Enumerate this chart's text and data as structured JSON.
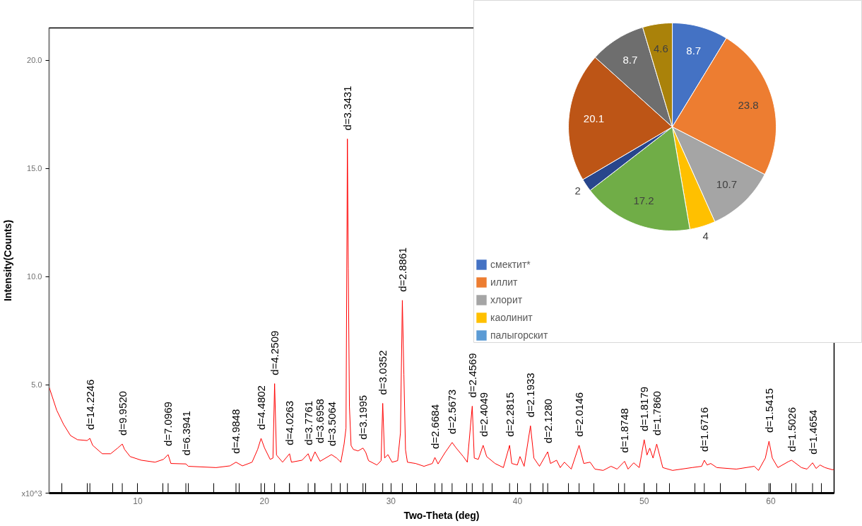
{
  "chart_data": [
    {
      "type": "line",
      "xlabel": "Two-Theta (deg)",
      "ylabel": "Intensity(Counts)",
      "color": "#ff0000",
      "xlim": [
        3,
        65
      ],
      "ylim": [
        0,
        21.5
      ],
      "xticks": [
        {
          "value": 4,
          "label": null
        },
        {
          "value": 6,
          "label": null
        },
        {
          "value": 8,
          "label": null
        },
        10,
        {
          "value": 12,
          "label": null
        },
        {
          "value": 14,
          "label": null
        },
        {
          "value": 16,
          "label": null
        },
        {
          "value": 18,
          "label": null
        },
        20,
        {
          "value": 22,
          "label": null
        },
        {
          "value": 24,
          "label": null
        },
        {
          "value": 26,
          "label": null
        },
        {
          "value": 28,
          "label": null
        },
        30,
        {
          "value": 32,
          "label": null
        },
        {
          "value": 34,
          "label": null
        },
        {
          "value": 36,
          "label": null
        },
        {
          "value": 38,
          "label": null
        },
        40,
        {
          "value": 42,
          "label": null
        },
        {
          "value": 44,
          "label": null
        },
        {
          "value": 46,
          "label": null
        },
        {
          "value": 48,
          "label": null
        },
        50,
        {
          "value": 52,
          "label": null
        },
        {
          "value": 54,
          "label": null
        },
        {
          "value": 56,
          "label": null
        },
        {
          "value": 58,
          "label": null
        },
        60,
        {
          "value": 62,
          "label": null
        },
        {
          "value": 64,
          "label": null
        }
      ],
      "yticks": [
        {
          "value": 0,
          "label": "x10^3"
        },
        {
          "value": 5,
          "label": "5.0"
        },
        {
          "value": 10,
          "label": "10.0"
        },
        {
          "value": 15,
          "label": "15.0"
        },
        {
          "value": 20,
          "label": "20.0"
        }
      ],
      "x": [
        3.0,
        3.6,
        4.14,
        4.69,
        5.24,
        6.0,
        6.22,
        6.44,
        7.2,
        7.86,
        8.41,
        8.78,
        8.96,
        9.4,
        10.28,
        11.37,
        12.03,
        12.4,
        12.62,
        13.8,
        14.0,
        16.19,
        17.28,
        17.76,
        18.27,
        19.03,
        19.47,
        19.74,
        20.02,
        20.46,
        20.68,
        20.81,
        20.96,
        21.44,
        21.99,
        22.14,
        22.98,
        23.46,
        23.68,
        24.0,
        24.4,
        25.3,
        25.71,
        26.04,
        26.3,
        26.45,
        26.56,
        26.63,
        26.72,
        26.85,
        27.03,
        27.4,
        27.79,
        28.01,
        28.23,
        28.89,
        29.22,
        29.35,
        29.5,
        29.76,
        30.09,
        30.53,
        30.75,
        30.9,
        31.02,
        31.15,
        31.3,
        31.95,
        32.61,
        33.27,
        33.47,
        33.72,
        34.28,
        34.83,
        35.16,
        35.71,
        36.03,
        36.42,
        36.58,
        36.9,
        37.28,
        37.56,
        38.22,
        38.88,
        39.37,
        39.54,
        39.98,
        40.19,
        40.52,
        41.02,
        41.29,
        41.73,
        42.38,
        42.6,
        43.08,
        43.37,
        43.7,
        44.24,
        44.86,
        45.23,
        45.73,
        46.11,
        46.76,
        47.38,
        47.86,
        48.45,
        48.73,
        49.17,
        49.61,
        50.0,
        50.22,
        50.44,
        50.7,
        50.99,
        51.47,
        52.24,
        53.77,
        54.54,
        54.75,
        54.97,
        55.26,
        55.74,
        57.28,
        58.7,
        59.03,
        59.57,
        59.86,
        60.12,
        60.56,
        61.43,
        61.65,
        62.42,
        62.86,
        63.3,
        63.58,
        63.89,
        64.28,
        64.87,
        65.0
      ],
      "values": [
        4.9,
        3.83,
        3.18,
        2.66,
        2.47,
        2.43,
        2.53,
        2.21,
        1.82,
        1.82,
        2.08,
        2.27,
        2.02,
        1.69,
        1.52,
        1.43,
        1.56,
        1.78,
        1.37,
        1.35,
        1.24,
        1.18,
        1.26,
        1.43,
        1.26,
        1.43,
        2.02,
        2.53,
        2.08,
        1.56,
        1.62,
        5.06,
        1.76,
        1.43,
        1.82,
        1.43,
        1.52,
        1.82,
        1.47,
        1.91,
        1.47,
        1.78,
        1.62,
        1.43,
        2.27,
        3.0,
        16.37,
        10.4,
        4.0,
        2.2,
        2.02,
        1.95,
        2.08,
        1.88,
        1.5,
        1.3,
        1.5,
        4.15,
        1.62,
        1.78,
        1.43,
        1.5,
        2.79,
        8.91,
        5.5,
        2.0,
        1.43,
        1.37,
        1.24,
        1.37,
        1.65,
        1.35,
        1.88,
        2.34,
        2.08,
        1.69,
        1.43,
        4.02,
        1.62,
        1.56,
        2.21,
        1.69,
        1.37,
        1.18,
        2.21,
        1.37,
        1.3,
        1.69,
        1.24,
        3.11,
        1.62,
        1.24,
        1.91,
        1.37,
        1.52,
        1.18,
        1.43,
        1.11,
        2.21,
        1.37,
        1.43,
        1.11,
        1.05,
        1.24,
        1.11,
        1.47,
        1.11,
        1.4,
        1.18,
        2.47,
        1.76,
        2.08,
        1.62,
        2.27,
        1.18,
        1.05,
        1.18,
        1.24,
        1.52,
        1.3,
        1.37,
        1.18,
        1.11,
        1.24,
        1.05,
        1.62,
        2.4,
        1.62,
        1.18,
        1.47,
        1.52,
        1.18,
        1.11,
        1.4,
        1.14,
        1.3,
        1.18,
        1.08,
        1.1
      ],
      "annotations": [
        {
          "text": "d=14.2246",
          "x": 6.22,
          "y": 2.53
        },
        {
          "text": "d=9.9520",
          "x": 8.78,
          "y": 2.27
        },
        {
          "text": "d=7.0969",
          "x": 12.4,
          "y": 1.78
        },
        {
          "text": "d=6.3941",
          "x": 13.8,
          "y": 1.35
        },
        {
          "text": "d=4.9848",
          "x": 17.76,
          "y": 1.43
        },
        {
          "text": "d=4.4802",
          "x": 19.74,
          "y": 2.53
        },
        {
          "text": "d=4.2509",
          "x": 20.81,
          "y": 5.06
        },
        {
          "text": "d=4.0263",
          "x": 21.99,
          "y": 1.82
        },
        {
          "text": "d=3.7761",
          "x": 23.46,
          "y": 1.82
        },
        {
          "text": "d=3.6958",
          "x": 24.0,
          "y": 1.91
        },
        {
          "text": "d=3.5064",
          "x": 25.3,
          "y": 1.78
        },
        {
          "text": "d=3.3431",
          "x": 26.56,
          "y": 16.37
        },
        {
          "text": "d=3.1995",
          "x": 27.79,
          "y": 2.08
        },
        {
          "text": "d=3.0352",
          "x": 29.35,
          "y": 4.15
        },
        {
          "text": "d=2.8861",
          "x": 30.9,
          "y": 8.91
        },
        {
          "text": "d=2.6684",
          "x": 33.47,
          "y": 1.65
        },
        {
          "text": "d=2.5673",
          "x": 34.83,
          "y": 2.34
        },
        {
          "text": "d=2.4569",
          "x": 36.42,
          "y": 4.02
        },
        {
          "text": "d=2.4049",
          "x": 37.28,
          "y": 2.21
        },
        {
          "text": "d=2.2815",
          "x": 39.37,
          "y": 2.21
        },
        {
          "text": "d=2.1933",
          "x": 41.02,
          "y": 3.11
        },
        {
          "text": "d=2.1280",
          "x": 42.38,
          "y": 1.91
        },
        {
          "text": "d=2.0146",
          "x": 44.86,
          "y": 2.21
        },
        {
          "text": "d=1.8748",
          "x": 48.45,
          "y": 1.47
        },
        {
          "text": "d=1.8179",
          "x": 50.0,
          "y": 2.47
        },
        {
          "text": "d=1.7860",
          "x": 50.99,
          "y": 2.27
        },
        {
          "text": "d=1.6716",
          "x": 54.75,
          "y": 1.52
        },
        {
          "text": "d=1.5415",
          "x": 59.86,
          "y": 2.4
        },
        {
          "text": "d=1.5026",
          "x": 61.65,
          "y": 1.52
        },
        {
          "text": "d=1.4654",
          "x": 63.3,
          "y": 1.4
        }
      ]
    },
    {
      "type": "pie",
      "categories": [
        "смектит*",
        "иллит",
        "хлорит",
        "каолинит",
        "палыгорскит",
        null,
        null,
        null,
        null,
        null
      ],
      "values": [
        8.7,
        23.8,
        10.7,
        4,
        0,
        17.2,
        2,
        20.1,
        8.7,
        4.6
      ],
      "colors": [
        "#4472c4",
        "#ed7d31",
        "#a5a5a5",
        "#ffc000",
        "#5b9bd5",
        "#70ad47",
        "#28468c",
        "#bd5516",
        "#6e6e6e",
        "#aa820a"
      ],
      "value_labels": [
        "8.7",
        "23.8",
        "10.7",
        "4",
        null,
        "17.2",
        "2",
        "20.1",
        "8.7",
        "4.6"
      ],
      "legend": "bottom left"
    }
  ]
}
